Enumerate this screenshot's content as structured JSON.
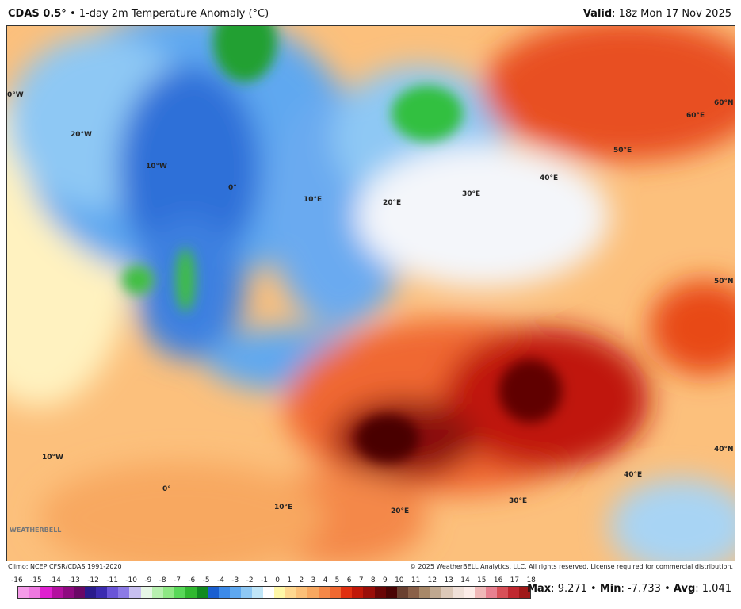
{
  "header": {
    "model": "CDAS 0.5°",
    "title": "• 1-day 2m Temperature Anomaly (°C)",
    "valid_label": "Valid",
    "valid_value": ": 18z Mon 17 Nov 2025"
  },
  "map": {
    "graticule_labels": [
      "0°W",
      "20°W",
      "10°W",
      "0°",
      "10°E",
      "20°E",
      "30°E",
      "40°E",
      "50°E",
      "60°E",
      "60°N",
      "50°N",
      "40°N",
      "40°E",
      "30°E",
      "20°E",
      "10°E",
      "0°",
      "10°W"
    ],
    "logo": "WeatherBELL"
  },
  "footer": {
    "climo": "Climo: NCEP CFSR/CDAS 1991-2020",
    "copyright": "© 2025 WeatherBELL Analytics, LLC. All rights reserved. License required for commercial distribution."
  },
  "colorbar": {
    "ticks": [
      "-16",
      "-15",
      "-14",
      "-13",
      "-12",
      "-11",
      "-10",
      "-9",
      "-8",
      "-7",
      "-6",
      "-5",
      "-4",
      "-3",
      "-2",
      "-1",
      "0",
      "1",
      "2",
      "3",
      "4",
      "5",
      "6",
      "7",
      "8",
      "9",
      "10",
      "11",
      "12",
      "13",
      "14",
      "15",
      "16",
      "17",
      "18"
    ],
    "colors": [
      "#f59be8",
      "#ee78e0",
      "#e020d0",
      "#b3109f",
      "#8e0a80",
      "#6a0866",
      "#2a1b8c",
      "#3b2bb0",
      "#6a55d8",
      "#8c7ae6",
      "#c8c0f0",
      "#e6f6e6",
      "#b8f0b0",
      "#8ee884",
      "#58d858",
      "#30b830",
      "#108a20",
      "#1a5fd0",
      "#3c8ae8",
      "#5ea8f0",
      "#8ec8f4",
      "#c0e6f8",
      "#ffffff",
      "#fff8a8",
      "#ffd890",
      "#fcc078",
      "#f8a860",
      "#f48848",
      "#f06830",
      "#e03010",
      "#c01808",
      "#9a0e08",
      "#6a0606",
      "#4a0404",
      "#6a4030",
      "#8a6048",
      "#a88868",
      "#c0a890",
      "#dcc8b8",
      "#f0e0d8",
      "#fcece8",
      "#f0b8b8",
      "#e88090",
      "#d85058",
      "#c02830",
      "#a01818"
    ]
  },
  "stats": {
    "max_label": "Max",
    "max": "9.271",
    "min_label": "Min",
    "min": "-7.733",
    "avg_label": "Avg",
    "avg": "1.041"
  }
}
